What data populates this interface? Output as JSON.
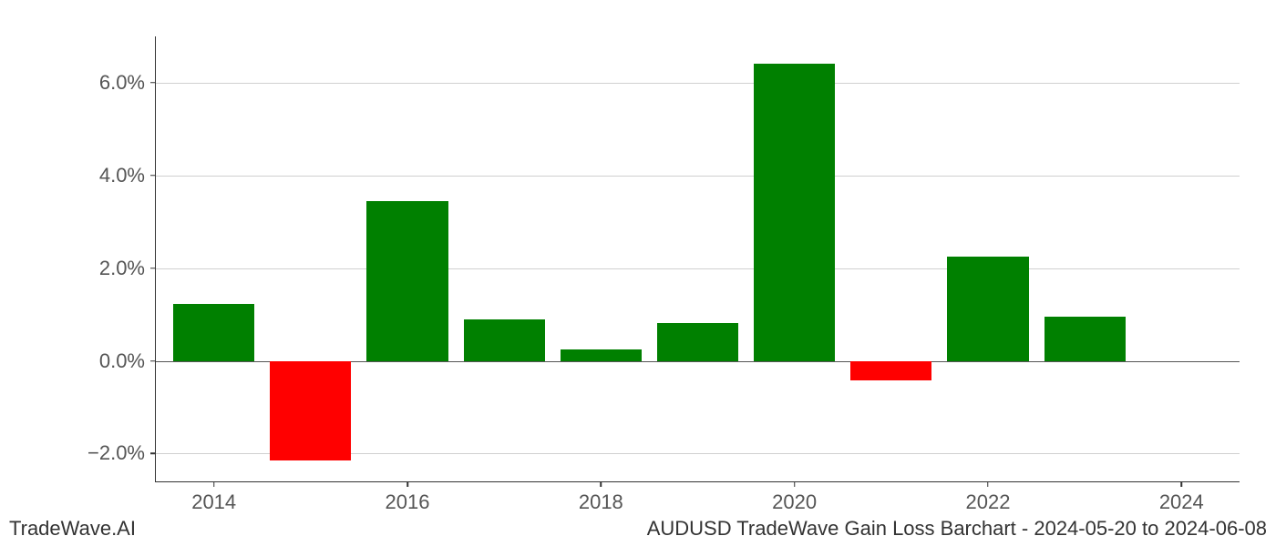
{
  "chart": {
    "type": "bar",
    "background_color": "#ffffff",
    "grid_color": "#d0d0d0",
    "axis_color": "#333333",
    "tick_font_size": 22,
    "tick_color": "#555555",
    "positive_color": "#008000",
    "negative_color": "#ff0000",
    "ylim_min": -2.6,
    "ylim_max": 7.0,
    "yticks": [
      {
        "value": -2.0,
        "label": "−2.0%"
      },
      {
        "value": 0.0,
        "label": "0.0%"
      },
      {
        "value": 2.0,
        "label": "2.0%"
      },
      {
        "value": 4.0,
        "label": "4.0%"
      },
      {
        "value": 6.0,
        "label": "6.0%"
      }
    ],
    "xlim_min": 2013.4,
    "xlim_max": 2024.6,
    "xticks": [
      {
        "value": 2014,
        "label": "2014"
      },
      {
        "value": 2016,
        "label": "2016"
      },
      {
        "value": 2018,
        "label": "2018"
      },
      {
        "value": 2020,
        "label": "2020"
      },
      {
        "value": 2022,
        "label": "2022"
      },
      {
        "value": 2024,
        "label": "2024"
      }
    ],
    "bar_width_years": 0.84,
    "bars": [
      {
        "year": 2014,
        "value": 1.22
      },
      {
        "year": 2015,
        "value": -2.15
      },
      {
        "year": 2016,
        "value": 3.45
      },
      {
        "year": 2017,
        "value": 0.9
      },
      {
        "year": 2018,
        "value": 0.25
      },
      {
        "year": 2019,
        "value": 0.82
      },
      {
        "year": 2020,
        "value": 6.42
      },
      {
        "year": 2021,
        "value": -0.42
      },
      {
        "year": 2022,
        "value": 2.25
      },
      {
        "year": 2023,
        "value": 0.95
      }
    ]
  },
  "footer": {
    "left": "TradeWave.AI",
    "right": "AUDUSD TradeWave Gain Loss Barchart - 2024-05-20 to 2024-06-08",
    "font_size": 22,
    "color": "#333333"
  }
}
